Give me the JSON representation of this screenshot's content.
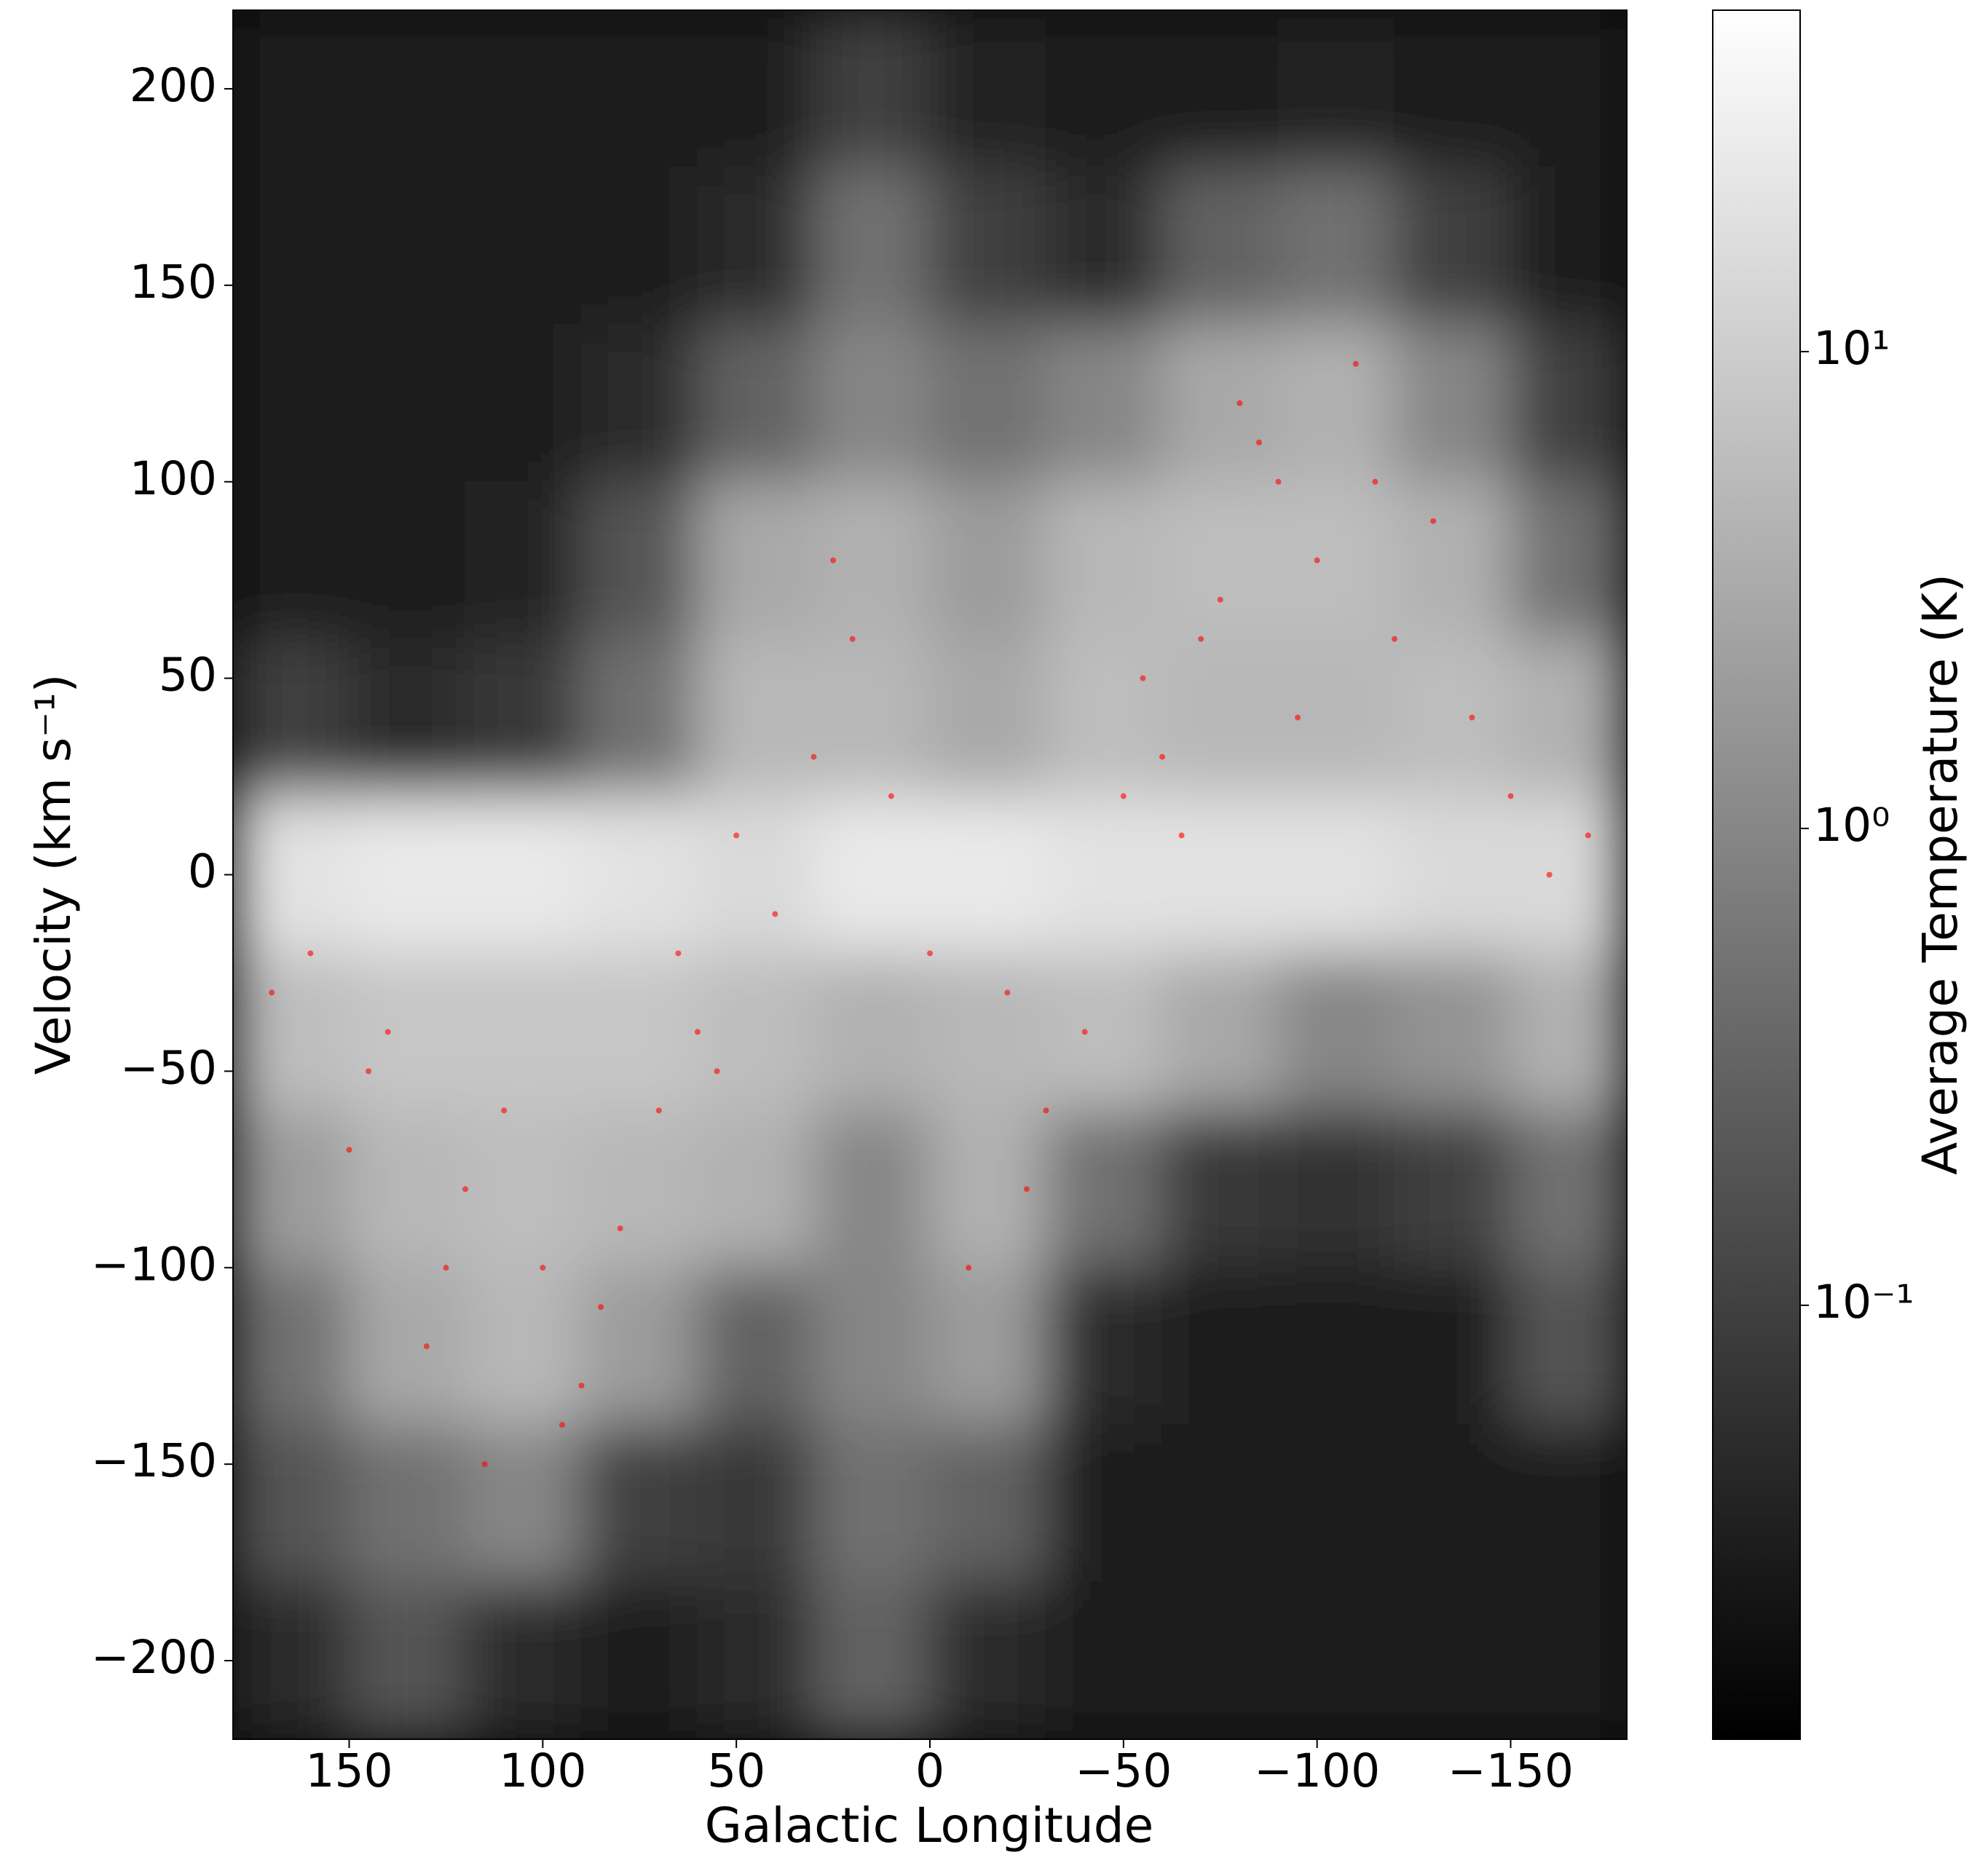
{
  "chart_data": {
    "type": "heatmap",
    "x_label": "Galactic Longitude",
    "y_label": "Velocity (km s⁻¹)",
    "xlim": [
      180,
      -180
    ],
    "ylim": [
      -220,
      220
    ],
    "xticks": [
      150,
      100,
      50,
      0,
      {
        "value": -50,
        "label": "−50"
      },
      {
        "value": -100,
        "label": "−100"
      },
      {
        "value": -150,
        "label": "−150"
      }
    ],
    "yticks": [
      {
        "value": -200,
        "label": "−200"
      },
      {
        "value": -150,
        "label": "−150"
      },
      {
        "value": -100,
        "label": "−100"
      },
      {
        "value": -50,
        "label": "−50"
      },
      0,
      50,
      100,
      150,
      200
    ],
    "x": [
      165,
      135,
      105,
      75,
      45,
      15,
      -15,
      -45,
      -75,
      -105,
      -135,
      -165
    ],
    "y": [
      200,
      160,
      120,
      80,
      40,
      0,
      -40,
      -80,
      -120,
      -160,
      -200
    ],
    "z": [
      [
        0.03,
        0.03,
        0.03,
        0.03,
        0.03,
        0.1,
        0.04,
        0.03,
        0.03,
        0.04,
        0.03,
        0.03
      ],
      [
        0.03,
        0.03,
        0.03,
        0.03,
        0.05,
        0.5,
        0.1,
        0.05,
        0.3,
        0.5,
        0.1,
        0.03
      ],
      [
        0.03,
        0.03,
        0.03,
        0.05,
        0.3,
        1,
        0.5,
        1,
        3,
        4,
        1,
        0.1
      ],
      [
        0.03,
        0.03,
        0.04,
        0.2,
        3,
        4,
        2,
        5,
        6,
        6,
        4,
        0.5
      ],
      [
        0.1,
        0.05,
        0.08,
        0.5,
        5,
        5,
        3,
        6,
        5,
        5,
        6,
        4
      ],
      [
        20,
        25,
        25,
        20,
        15,
        25,
        25,
        20,
        20,
        20,
        15,
        15
      ],
      [
        6,
        8,
        8,
        8,
        6,
        4,
        5,
        6,
        3,
        1,
        1.5,
        4
      ],
      [
        2,
        5,
        6,
        5,
        4,
        1,
        4,
        0.5,
        0.08,
        0.06,
        0.1,
        0.5
      ],
      [
        0.5,
        3,
        5,
        2,
        0.3,
        1,
        2,
        0.05,
        0.03,
        0.03,
        0.03,
        0.2
      ],
      [
        0.2,
        0.5,
        1,
        0.1,
        0.08,
        0.5,
        0.3,
        0.03,
        0.03,
        0.03,
        0.03,
        0.03
      ],
      [
        0.05,
        0.2,
        0.05,
        0.03,
        0.05,
        0.3,
        0.05,
        0.03,
        0.03,
        0.03,
        0.03,
        0.03
      ]
    ],
    "colorbar": {
      "label": "Average Temperature (K)",
      "log": true,
      "lim": [
        0.0123,
        52
      ],
      "ticks": [
        {
          "value": 0.1,
          "label": "10⁻¹"
        },
        {
          "value": 1,
          "label": "10⁰"
        },
        {
          "value": 10,
          "label": "10¹"
        }
      ]
    },
    "overlay": {
      "type": "scatter",
      "color": "#ff0000",
      "x": [
        -70,
        -90,
        -100,
        -60,
        -120,
        -140,
        -80,
        -50,
        -110,
        -150,
        -170,
        -95,
        -75,
        -130,
        -65,
        60,
        70,
        100,
        120,
        90,
        140,
        160,
        110,
        130,
        80,
        150,
        170,
        95,
        125,
        40,
        30,
        20,
        50,
        10,
        -20,
        -30,
        -10,
        0,
        -40,
        25,
        65,
        85,
        115,
        145,
        -55,
        -85,
        -115,
        -160,
        55,
        -25
      ],
      "y": [
        60,
        100,
        80,
        30,
        60,
        40,
        120,
        20,
        130,
        20,
        10,
        40,
        70,
        90,
        10,
        -40,
        -60,
        -100,
        -80,
        -130,
        -40,
        -20,
        -60,
        -120,
        -90,
        -70,
        -30,
        -140,
        -100,
        -10,
        30,
        60,
        10,
        20,
        -30,
        -60,
        -100,
        -20,
        -40,
        80,
        -20,
        -110,
        -150,
        -50,
        50,
        110,
        100,
        0,
        -50,
        -80
      ]
    }
  }
}
